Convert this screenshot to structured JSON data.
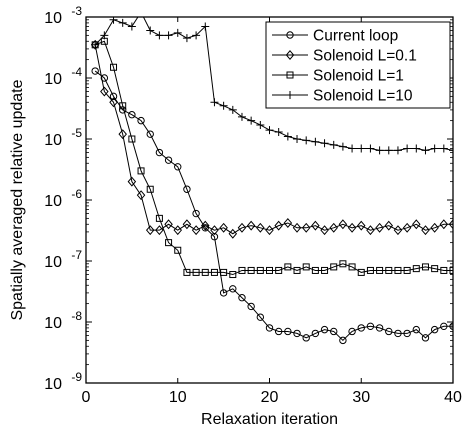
{
  "chart_data": {
    "type": "line",
    "xlabel": "Relaxation iteration",
    "ylabel": "Spatially averaged relative update",
    "xlim": [
      0,
      40
    ],
    "ylim": [
      1e-09,
      0.001
    ],
    "yscale": "log",
    "grid": false,
    "legend_position": "top-right",
    "x_ticks": [
      {
        "value": 0,
        "label": "0"
      },
      {
        "value": 10,
        "label": "10"
      },
      {
        "value": 20,
        "label": "20"
      },
      {
        "value": 30,
        "label": "30"
      },
      {
        "value": 40,
        "label": "40"
      }
    ],
    "y_ticks": [
      {
        "value": 1e-09,
        "base": "10",
        "exp": "-9"
      },
      {
        "value": 1e-08,
        "base": "10",
        "exp": "-8"
      },
      {
        "value": 1e-07,
        "base": "10",
        "exp": "-7"
      },
      {
        "value": 1e-06,
        "base": "10",
        "exp": "-6"
      },
      {
        "value": 1e-05,
        "base": "10",
        "exp": "-5"
      },
      {
        "value": 0.0001,
        "base": "10",
        "exp": "-4"
      },
      {
        "value": 0.001,
        "base": "10",
        "exp": "-3"
      }
    ],
    "series": [
      {
        "name": "Current loop",
        "marker": "circle",
        "x": [
          1,
          2,
          3,
          4,
          5,
          6,
          7,
          8,
          9,
          10,
          11,
          12,
          13,
          14,
          15,
          16,
          17,
          18,
          19,
          20,
          21,
          22,
          23,
          24,
          25,
          26,
          27,
          28,
          29,
          30,
          31,
          32,
          33,
          34,
          35,
          36,
          37,
          38,
          39,
          40
        ],
        "y": [
          0.00013,
          0.0001,
          5e-05,
          3e-05,
          2.5e-05,
          2e-05,
          1.2e-05,
          6e-06,
          4.5e-06,
          3.5e-06,
          1.5e-06,
          6e-07,
          3.5e-07,
          2.5e-07,
          3e-08,
          3.5e-08,
          2.5e-08,
          1.8e-08,
          1.2e-08,
          8e-09,
          7e-09,
          7e-09,
          6.5e-09,
          5.5e-09,
          6.5e-09,
          7.5e-09,
          7e-09,
          5e-09,
          7e-09,
          8e-09,
          8.5e-09,
          8e-09,
          7e-09,
          6.5e-09,
          6.5e-09,
          7.5e-09,
          5.5e-09,
          7.5e-09,
          8.5e-09,
          8.5e-09
        ]
      },
      {
        "name": "Solenoid L=0.1",
        "marker": "diamond",
        "x": [
          1,
          2,
          3,
          4,
          5,
          6,
          7,
          8,
          9,
          10,
          11,
          12,
          13,
          14,
          15,
          16,
          17,
          18,
          19,
          20,
          21,
          22,
          23,
          24,
          25,
          26,
          27,
          28,
          29,
          30,
          31,
          32,
          33,
          34,
          35,
          36,
          37,
          38,
          39,
          40
        ],
        "y": [
          0.00035,
          6e-05,
          4e-05,
          1.2e-05,
          2e-06,
          1.2e-06,
          3.2e-07,
          3.2e-07,
          4e-07,
          3.2e-07,
          4e-07,
          3.2e-07,
          3.8e-07,
          3.2e-07,
          3.5e-07,
          2.8e-07,
          3.5e-07,
          3.8e-07,
          3.5e-07,
          3.2e-07,
          3.8e-07,
          4.2e-07,
          3.5e-07,
          3.5e-07,
          3.8e-07,
          3.2e-07,
          3.5e-07,
          4e-07,
          3.5e-07,
          3.8e-07,
          3.2e-07,
          3.5e-07,
          3.8e-07,
          3.2e-07,
          3.5e-07,
          4e-07,
          3.2e-07,
          3.5e-07,
          4e-07,
          4e-07
        ]
      },
      {
        "name": "Solenoid L=1",
        "marker": "square",
        "x": [
          1,
          2,
          3,
          4,
          5,
          6,
          7,
          8,
          9,
          10,
          11,
          12,
          13,
          14,
          15,
          16,
          17,
          18,
          19,
          20,
          21,
          22,
          23,
          24,
          25,
          26,
          27,
          28,
          29,
          30,
          31,
          32,
          33,
          34,
          35,
          36,
          37,
          38,
          39,
          40
        ],
        "y": [
          0.00035,
          0.0004,
          0.00015,
          3.5e-05,
          1e-05,
          3e-06,
          1.5e-06,
          5e-07,
          2e-07,
          1.5e-07,
          6.5e-08,
          6.5e-08,
          6.5e-08,
          6.5e-08,
          6.5e-08,
          6e-08,
          7e-08,
          7e-08,
          7e-08,
          7e-08,
          7e-08,
          8e-08,
          7e-08,
          8e-08,
          7e-08,
          7e-08,
          8e-08,
          9e-08,
          8e-08,
          6.5e-08,
          7e-08,
          7e-08,
          7e-08,
          7e-08,
          7e-08,
          7.5e-08,
          8e-08,
          7.5e-08,
          7e-08,
          7e-08
        ]
      },
      {
        "name": "Solenoid L=10",
        "marker": "plus",
        "x": [
          1,
          2,
          3,
          4,
          5,
          6,
          7,
          8,
          9,
          10,
          11,
          12,
          13,
          14,
          15,
          16,
          17,
          18,
          19,
          20,
          21,
          22,
          23,
          24,
          25,
          26,
          27,
          28,
          29,
          30,
          31,
          32,
          33,
          34,
          35,
          36,
          37,
          38,
          39,
          40
        ],
        "y": [
          0.00035,
          0.0005,
          0.0009,
          0.0008,
          0.0007,
          0.0012,
          0.0006,
          0.0005,
          0.0005,
          0.00055,
          0.00045,
          0.0005,
          0.0007,
          4e-05,
          3.5e-05,
          3e-05,
          2.3e-05,
          2e-05,
          1.7e-05,
          1.4e-05,
          1.3e-05,
          1.1e-05,
          1e-05,
          9.5e-06,
          9e-06,
          8.5e-06,
          8e-06,
          7.5e-06,
          7e-06,
          7e-06,
          7e-06,
          6.5e-06,
          6.5e-06,
          6.5e-06,
          7e-06,
          7e-06,
          6.5e-06,
          7e-06,
          7e-06,
          6.5e-06
        ]
      }
    ]
  }
}
